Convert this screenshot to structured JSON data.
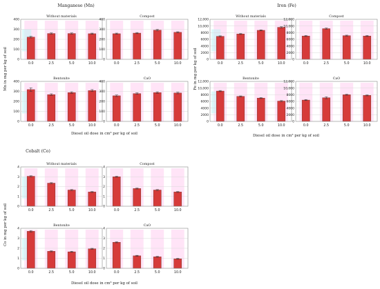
{
  "colors": {
    "bar": "#d63a3a",
    "bar_edge": "#6b2a22",
    "frame": "#888888",
    "grid": "#d9d9d9",
    "artifact_pink": "#ffc4ee",
    "artifact_cyan": "#bff4f4",
    "xtick_highlight": "#d4145a"
  },
  "chart_data": [
    {
      "id": "mn",
      "type": "bar",
      "title": "Manganese (Mn)",
      "ylabel": "Mn in mg per kg of soil",
      "xlabel": "Diesel oil dose in cm³ per kg of soil",
      "categories": [
        "0.0",
        "2.5",
        "5.0",
        "10.0"
      ],
      "ylim": [
        0,
        400
      ],
      "yticks": [
        "0",
        "100",
        "200",
        "300",
        "400"
      ],
      "grid": true,
      "panels": [
        {
          "title": "Without materials",
          "values": [
            222,
            258,
            258,
            256
          ],
          "errors": [
            8,
            6,
            6,
            6
          ]
        },
        {
          "title": "Compost",
          "values": [
            256,
            262,
            292,
            270
          ],
          "errors": [
            6,
            6,
            8,
            6
          ]
        },
        {
          "title": "Bentonite",
          "values": [
            318,
            268,
            288,
            308
          ],
          "errors": [
            18,
            8,
            8,
            10
          ]
        },
        {
          "title": "CaO",
          "values": [
            256,
            278,
            288,
            284
          ],
          "errors": [
            8,
            8,
            8,
            8
          ]
        }
      ]
    },
    {
      "id": "fe",
      "type": "bar",
      "title": "Iron (Fe)",
      "ylabel": "Fe in mg per kg of soil",
      "xlabel": "Diesel oil dose in cm³ per kg of soil",
      "categories": [
        "0.0",
        "2.5",
        "5.0",
        "10.0"
      ],
      "ylim": [
        0,
        12000
      ],
      "yticks": [
        "0",
        "2000",
        "4000",
        "6000",
        "8000",
        "10,000",
        "12,000"
      ],
      "grid": true,
      "panels": [
        {
          "title": "Without materials",
          "values": [
            6900,
            7600,
            8700,
            9600
          ],
          "errors": [
            150,
            150,
            150,
            180
          ]
        },
        {
          "title": "Compost",
          "values": [
            7000,
            9200,
            7100,
            7000
          ],
          "errors": [
            150,
            200,
            150,
            150
          ]
        },
        {
          "title": "Bentonite",
          "values": [
            9100,
            7500,
            7000,
            6100
          ],
          "errors": [
            180,
            150,
            150,
            150
          ]
        },
        {
          "title": "CaO",
          "values": [
            6400,
            7100,
            8000,
            7800
          ],
          "errors": [
            150,
            300,
            150,
            150
          ]
        }
      ]
    },
    {
      "id": "co",
      "type": "bar",
      "title": "Cobalt (Co)",
      "ylabel": "Co in mg per kg of soil",
      "xlabel": "Diesel oil dose in cm³ per kg of soil",
      "categories": [
        "0.0",
        "2.5",
        "5.0",
        "10.0"
      ],
      "ylim": [
        0,
        4
      ],
      "yticks": [
        "0",
        "1",
        "2",
        "3",
        "4"
      ],
      "grid": true,
      "panels": [
        {
          "title": "Without materials",
          "values": [
            3.05,
            2.35,
            1.65,
            1.45
          ],
          "errors": [
            0.05,
            0.05,
            0.05,
            0.05
          ]
        },
        {
          "title": "Compost",
          "values": [
            3.0,
            1.8,
            1.65,
            1.45
          ],
          "errors": [
            0.05,
            0.05,
            0.05,
            0.05
          ]
        },
        {
          "title": "Bentonite",
          "values": [
            3.7,
            1.7,
            1.65,
            1.95
          ],
          "errors": [
            0.08,
            0.05,
            0.05,
            0.05
          ]
        },
        {
          "title": "CaO",
          "values": [
            2.6,
            1.25,
            1.15,
            0.95
          ],
          "errors": [
            0.05,
            0.05,
            0.05,
            0.05
          ]
        }
      ]
    }
  ]
}
